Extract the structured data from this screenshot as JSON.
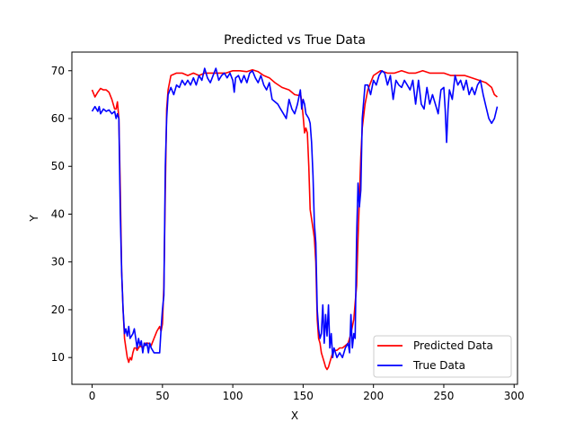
{
  "chart_data": {
    "type": "line",
    "title": "Predicted vs True Data",
    "xlabel": "X",
    "ylabel": "Y",
    "xlim": [
      -14.4,
      302.4
    ],
    "ylim": [
      4.4,
      73.9
    ],
    "xticks": [
      0,
      50,
      100,
      150,
      200,
      250,
      300
    ],
    "yticks": [
      10,
      20,
      30,
      40,
      50,
      60,
      70
    ],
    "grid": false,
    "legend_position": "lower right",
    "series": [
      {
        "name": "Predicted Data",
        "color": "#ff0000",
        "points": [
          [
            0,
            66
          ],
          [
            2,
            64.5
          ],
          [
            4,
            65.5
          ],
          [
            6,
            66.3
          ],
          [
            8,
            66
          ],
          [
            10,
            66
          ],
          [
            12,
            65.5
          ],
          [
            14,
            64
          ],
          [
            16,
            62
          ],
          [
            17,
            62
          ],
          [
            18,
            63.5
          ],
          [
            19,
            60
          ],
          [
            20,
            45
          ],
          [
            21,
            28
          ],
          [
            22,
            20
          ],
          [
            23,
            14
          ],
          [
            24,
            12
          ],
          [
            25,
            10
          ],
          [
            26,
            9
          ],
          [
            27,
            10
          ],
          [
            28,
            9.5
          ],
          [
            29,
            11
          ],
          [
            30,
            12
          ],
          [
            31,
            12
          ],
          [
            32,
            11.5
          ],
          [
            34,
            12.5
          ],
          [
            36,
            12
          ],
          [
            38,
            13
          ],
          [
            40,
            13
          ],
          [
            42,
            12.5
          ],
          [
            44,
            14
          ],
          [
            46,
            15.5
          ],
          [
            48,
            16.5
          ],
          [
            49,
            15.5
          ],
          [
            50,
            17
          ],
          [
            51,
            25
          ],
          [
            52,
            45
          ],
          [
            53,
            62
          ],
          [
            54,
            66
          ],
          [
            56,
            69
          ],
          [
            60,
            69.5
          ],
          [
            64,
            69.5
          ],
          [
            68,
            69
          ],
          [
            72,
            69.5
          ],
          [
            76,
            69
          ],
          [
            80,
            69.5
          ],
          [
            85,
            69.5
          ],
          [
            90,
            69.5
          ],
          [
            95,
            69.5
          ],
          [
            100,
            70
          ],
          [
            105,
            70
          ],
          [
            110,
            69.8
          ],
          [
            114,
            70.2
          ],
          [
            118,
            69.8
          ],
          [
            122,
            69
          ],
          [
            126,
            68.5
          ],
          [
            130,
            67.5
          ],
          [
            135,
            66.5
          ],
          [
            140,
            66
          ],
          [
            144,
            65
          ],
          [
            147,
            64.8
          ],
          [
            148,
            65.5
          ],
          [
            149,
            63.5
          ],
          [
            150,
            60.5
          ],
          [
            151,
            57
          ],
          [
            152,
            58
          ],
          [
            153,
            57
          ],
          [
            154,
            50
          ],
          [
            155,
            41
          ],
          [
            156,
            39
          ],
          [
            157,
            37
          ],
          [
            158,
            35
          ],
          [
            159,
            30
          ],
          [
            160,
            18
          ],
          [
            161,
            14
          ],
          [
            162,
            13
          ],
          [
            163,
            11
          ],
          [
            164,
            10
          ],
          [
            165,
            9
          ],
          [
            166,
            8
          ],
          [
            167,
            7.5
          ],
          [
            168,
            8
          ],
          [
            169,
            9
          ],
          [
            170,
            10
          ],
          [
            171,
            11
          ],
          [
            172,
            11.5
          ],
          [
            174,
            11.5
          ],
          [
            176,
            12
          ],
          [
            178,
            12
          ],
          [
            180,
            12.5
          ],
          [
            182,
            13
          ],
          [
            184,
            15
          ],
          [
            186,
            18
          ],
          [
            188,
            25
          ],
          [
            189,
            35
          ],
          [
            190,
            43
          ],
          [
            191,
            52
          ],
          [
            192,
            58
          ],
          [
            194,
            63
          ],
          [
            196,
            66
          ],
          [
            198,
            67.5
          ],
          [
            200,
            69
          ],
          [
            205,
            70
          ],
          [
            210,
            69.5
          ],
          [
            215,
            69.5
          ],
          [
            220,
            70
          ],
          [
            225,
            69.5
          ],
          [
            230,
            69.5
          ],
          [
            235,
            70
          ],
          [
            240,
            69.5
          ],
          [
            245,
            69.5
          ],
          [
            250,
            69.5
          ],
          [
            255,
            69
          ],
          [
            260,
            69
          ],
          [
            265,
            69
          ],
          [
            270,
            68.5
          ],
          [
            275,
            68
          ],
          [
            280,
            67.5
          ],
          [
            284,
            66.5
          ],
          [
            286,
            65
          ],
          [
            288,
            64.5
          ]
        ]
      },
      {
        "name": "True Data",
        "color": "#0000ff",
        "points": [
          [
            0,
            61.5
          ],
          [
            2,
            62.5
          ],
          [
            4,
            61.5
          ],
          [
            5,
            62.5
          ],
          [
            6,
            61
          ],
          [
            8,
            62
          ],
          [
            10,
            61.5
          ],
          [
            12,
            61.8
          ],
          [
            14,
            61
          ],
          [
            16,
            61.5
          ],
          [
            17,
            60
          ],
          [
            18,
            61
          ],
          [
            19,
            60
          ],
          [
            20,
            40
          ],
          [
            21,
            28
          ],
          [
            22,
            20
          ],
          [
            23,
            15
          ],
          [
            24,
            16
          ],
          [
            25,
            14.5
          ],
          [
            26,
            16.5
          ],
          [
            27,
            14
          ],
          [
            28,
            14.5
          ],
          [
            29,
            15
          ],
          [
            30,
            16
          ],
          [
            31,
            14
          ],
          [
            32,
            12
          ],
          [
            33,
            14
          ],
          [
            34,
            12.5
          ],
          [
            35,
            13.5
          ],
          [
            36,
            11
          ],
          [
            37,
            13
          ],
          [
            38,
            12.5
          ],
          [
            39,
            13
          ],
          [
            40,
            11
          ],
          [
            41,
            13
          ],
          [
            42,
            12
          ],
          [
            44,
            11
          ],
          [
            46,
            11
          ],
          [
            48,
            11
          ],
          [
            49,
            16
          ],
          [
            50,
            20
          ],
          [
            51,
            23
          ],
          [
            52,
            50
          ],
          [
            53,
            60
          ],
          [
            54,
            65
          ],
          [
            56,
            66.5
          ],
          [
            58,
            65
          ],
          [
            60,
            67
          ],
          [
            62,
            66.5
          ],
          [
            64,
            68
          ],
          [
            66,
            67
          ],
          [
            68,
            68
          ],
          [
            70,
            67
          ],
          [
            72,
            68.5
          ],
          [
            74,
            67
          ],
          [
            76,
            69
          ],
          [
            78,
            68
          ],
          [
            80,
            70.5
          ],
          [
            82,
            68.5
          ],
          [
            84,
            67.5
          ],
          [
            86,
            69
          ],
          [
            88,
            70.5
          ],
          [
            90,
            68
          ],
          [
            92,
            69
          ],
          [
            94,
            69.5
          ],
          [
            96,
            68.5
          ],
          [
            98,
            69.5
          ],
          [
            100,
            68
          ],
          [
            101,
            65.5
          ],
          [
            102,
            68.5
          ],
          [
            104,
            69
          ],
          [
            106,
            67.5
          ],
          [
            108,
            69
          ],
          [
            110,
            67.5
          ],
          [
            112,
            69.5
          ],
          [
            114,
            70
          ],
          [
            116,
            68.5
          ],
          [
            118,
            67.5
          ],
          [
            120,
            69
          ],
          [
            122,
            67
          ],
          [
            124,
            66
          ],
          [
            126,
            67.5
          ],
          [
            128,
            64
          ],
          [
            130,
            63.5
          ],
          [
            132,
            63
          ],
          [
            134,
            62
          ],
          [
            136,
            61
          ],
          [
            138,
            60
          ],
          [
            140,
            64
          ],
          [
            142,
            62
          ],
          [
            144,
            61
          ],
          [
            146,
            63
          ],
          [
            148,
            66
          ],
          [
            149,
            62
          ],
          [
            150,
            64
          ],
          [
            151,
            63
          ],
          [
            152,
            61
          ],
          [
            153,
            60.5
          ],
          [
            154,
            60
          ],
          [
            155,
            59
          ],
          [
            156,
            55
          ],
          [
            157,
            48
          ],
          [
            158,
            38
          ],
          [
            159,
            34
          ],
          [
            160,
            20
          ],
          [
            161,
            16
          ],
          [
            162,
            14
          ],
          [
            163,
            15
          ],
          [
            164,
            21
          ],
          [
            165,
            13
          ],
          [
            166,
            19
          ],
          [
            167,
            14.5
          ],
          [
            168,
            21
          ],
          [
            169,
            12
          ],
          [
            170,
            15
          ],
          [
            171,
            10
          ],
          [
            172,
            12
          ],
          [
            174,
            10
          ],
          [
            176,
            11
          ],
          [
            178,
            10
          ],
          [
            180,
            12
          ],
          [
            182,
            13
          ],
          [
            183,
            11
          ],
          [
            184,
            19
          ],
          [
            185,
            12
          ],
          [
            186,
            15
          ],
          [
            187,
            14
          ],
          [
            188,
            35
          ],
          [
            189,
            46.5
          ],
          [
            190,
            41.5
          ],
          [
            191,
            45
          ],
          [
            192,
            60
          ],
          [
            194,
            67
          ],
          [
            196,
            67
          ],
          [
            198,
            65
          ],
          [
            200,
            68
          ],
          [
            202,
            67
          ],
          [
            204,
            69
          ],
          [
            206,
            70
          ],
          [
            208,
            69.5
          ],
          [
            210,
            67
          ],
          [
            212,
            69
          ],
          [
            214,
            64
          ],
          [
            216,
            68
          ],
          [
            218,
            67
          ],
          [
            220,
            66.5
          ],
          [
            222,
            68
          ],
          [
            224,
            67
          ],
          [
            226,
            66
          ],
          [
            228,
            68
          ],
          [
            230,
            63
          ],
          [
            232,
            68
          ],
          [
            234,
            63
          ],
          [
            236,
            62
          ],
          [
            238,
            66.5
          ],
          [
            240,
            63
          ],
          [
            242,
            65
          ],
          [
            244,
            63
          ],
          [
            246,
            61
          ],
          [
            248,
            66
          ],
          [
            250,
            66.5
          ],
          [
            251,
            62
          ],
          [
            252,
            55
          ],
          [
            253,
            62
          ],
          [
            254,
            66
          ],
          [
            256,
            64
          ],
          [
            258,
            69
          ],
          [
            260,
            67
          ],
          [
            262,
            68
          ],
          [
            264,
            66
          ],
          [
            266,
            68
          ],
          [
            268,
            65
          ],
          [
            270,
            66.5
          ],
          [
            272,
            65
          ],
          [
            274,
            67
          ],
          [
            276,
            68
          ],
          [
            278,
            65
          ],
          [
            280,
            62.5
          ],
          [
            282,
            60
          ],
          [
            284,
            59
          ],
          [
            286,
            60
          ],
          [
            288,
            62.5
          ]
        ]
      }
    ]
  }
}
